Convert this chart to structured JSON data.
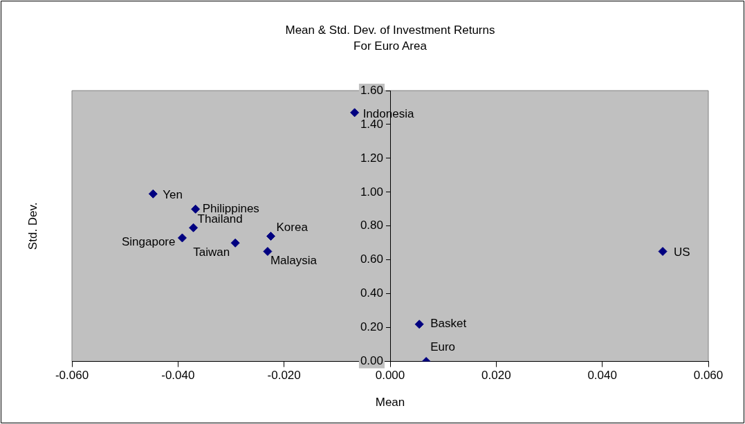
{
  "chart_data": {
    "type": "scatter",
    "title": "Mean & Std. Dev. of Investment Returns",
    "subtitle": "For Euro Area",
    "xlabel": "Mean",
    "ylabel": "Std. Dev.",
    "x": [
      -0.0067,
      -0.0447,
      -0.0367,
      -0.0371,
      -0.0392,
      -0.0292,
      -0.0225,
      -0.0231,
      0.0514,
      0.0055,
      0.0068
    ],
    "values": [
      1.47,
      0.99,
      0.9,
      0.79,
      0.73,
      0.7,
      0.74,
      0.65,
      0.65,
      0.22,
      0.0
    ],
    "color": "#000080",
    "marker": "diamond",
    "grid": false,
    "legend": false,
    "xlim": [
      -0.06,
      0.06
    ],
    "xticks": [
      {
        "value": -0.06,
        "label": "-0.060"
      },
      {
        "value": -0.04,
        "label": "-0.040"
      },
      {
        "value": -0.02,
        "label": "-0.020"
      },
      {
        "value": 0,
        "label": "0.000"
      },
      {
        "value": 0.02,
        "label": "0.020"
      },
      {
        "value": 0.04,
        "label": "0.040"
      },
      {
        "value": 0.06,
        "label": "0.060"
      }
    ],
    "ylim": [
      0,
      1.6
    ],
    "yticks": [
      {
        "value": 0,
        "label": "0.00"
      },
      {
        "value": 0.2,
        "label": "0.20"
      },
      {
        "value": 0.4,
        "label": "0.40"
      },
      {
        "value": 0.6,
        "label": "0.60"
      },
      {
        "value": 0.8,
        "label": "0.80"
      },
      {
        "value": 1.0,
        "label": "1.00"
      },
      {
        "value": 1.2,
        "label": "1.20"
      },
      {
        "value": 1.4,
        "label": "1.40"
      },
      {
        "value": 1.6,
        "label": "1.60"
      }
    ],
    "annotations": [
      {
        "text": "Indonesia",
        "x": -0.0067,
        "y": 1.47
      },
      {
        "text": "Yen",
        "x": -0.0447,
        "y": 0.99
      },
      {
        "text": "Philippines",
        "x": -0.0367,
        "y": 0.9
      },
      {
        "text": "Thailand",
        "x": -0.0371,
        "y": 0.79
      },
      {
        "text": "Singapore",
        "x": -0.0392,
        "y": 0.73
      },
      {
        "text": "Taiwan",
        "x": -0.0292,
        "y": 0.7
      },
      {
        "text": "Korea",
        "x": -0.0225,
        "y": 0.74
      },
      {
        "text": "Malaysia",
        "x": -0.0231,
        "y": 0.65
      },
      {
        "text": "US",
        "x": 0.0514,
        "y": 0.65
      },
      {
        "text": "Basket",
        "x": 0.0055,
        "y": 0.22
      },
      {
        "text": "Euro",
        "x": 0.0068,
        "y": 0.0
      }
    ]
  }
}
